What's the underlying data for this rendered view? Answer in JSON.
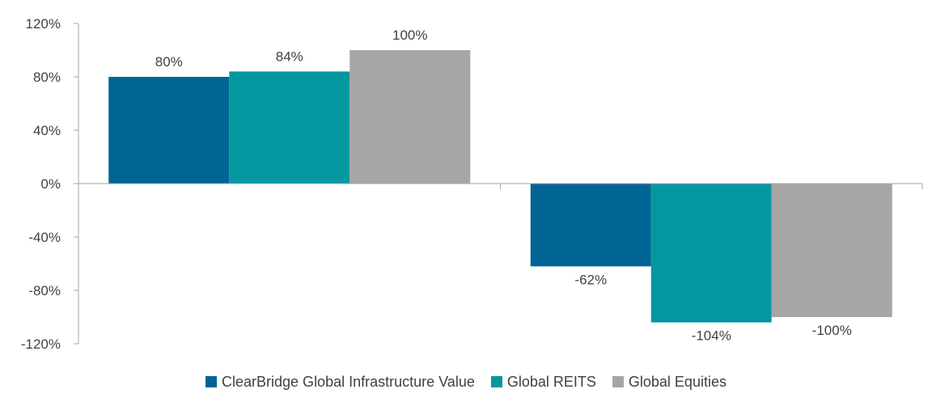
{
  "chart_data": {
    "type": "bar",
    "categories": [
      "",
      ""
    ],
    "series": [
      {
        "name": "ClearBridge Global Infrastructure Value",
        "values": [
          80,
          -62
        ],
        "color": "#006494",
        "labels": [
          "80%",
          "-62%"
        ]
      },
      {
        "name": "Global REITS",
        "values": [
          84,
          -104
        ],
        "color": "#0597a0",
        "labels": [
          "84%",
          "-104%"
        ]
      },
      {
        "name": "Global Equities",
        "values": [
          100,
          -100
        ],
        "color": "#a6a6a6",
        "labels": [
          "100%",
          "-100%"
        ]
      }
    ],
    "ylim": [
      -120,
      120
    ],
    "yticks": [
      120,
      80,
      40,
      0,
      -40,
      -80,
      -120
    ],
    "ytick_labels": [
      "120%",
      "80%",
      "40%",
      "0%",
      "-40%",
      "-80%",
      "-120%"
    ],
    "title": "",
    "xlabel": "",
    "ylabel": "",
    "grid": false,
    "legend_position": "bottom"
  }
}
